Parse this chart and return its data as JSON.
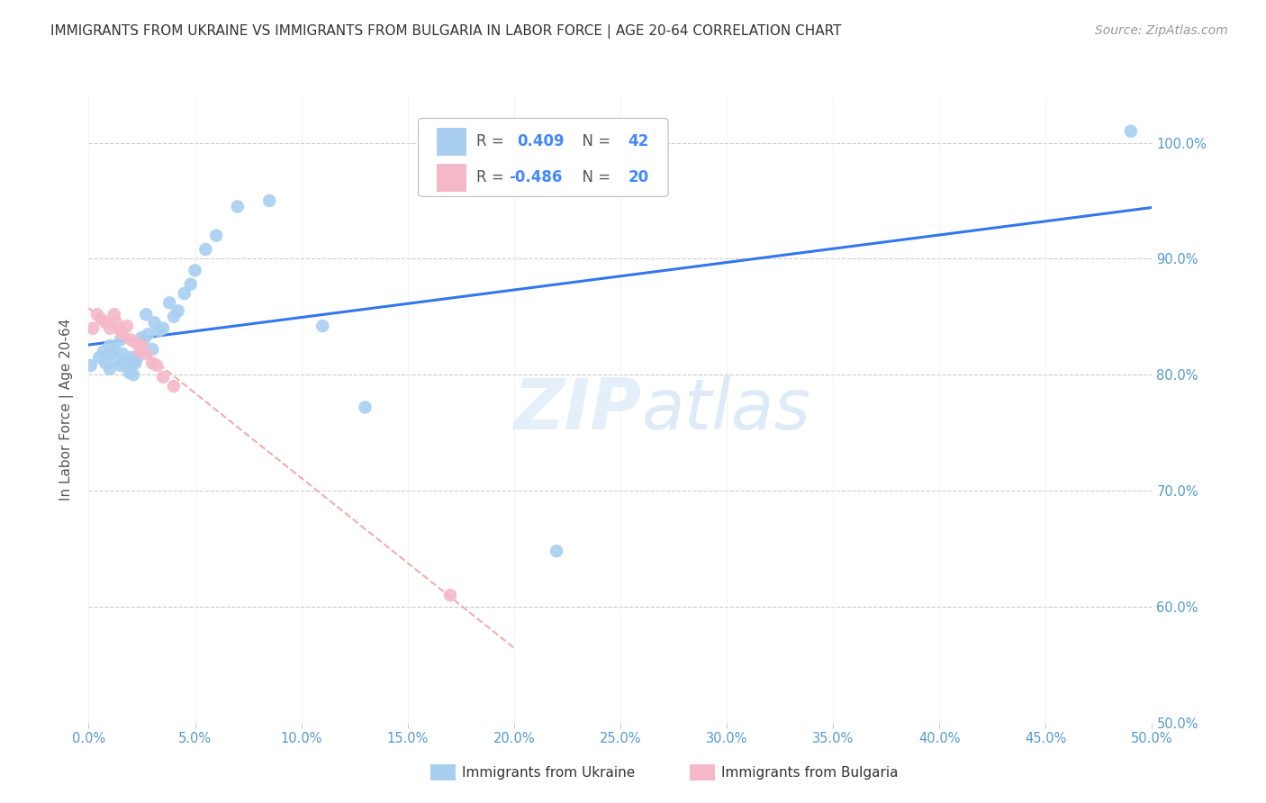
{
  "title": "IMMIGRANTS FROM UKRAINE VS IMMIGRANTS FROM BULGARIA IN LABOR FORCE | AGE 20-64 CORRELATION CHART",
  "source": "Source: ZipAtlas.com",
  "ylabel": "In Labor Force | Age 20-64",
  "xlim": [
    0.0,
    0.5
  ],
  "ylim": [
    0.5,
    1.04
  ],
  "xticks": [
    0.0,
    0.05,
    0.1,
    0.15,
    0.2,
    0.25,
    0.3,
    0.35,
    0.4,
    0.45,
    0.5
  ],
  "yticks_right": [
    0.5,
    0.6,
    0.7,
    0.8,
    0.9,
    1.0
  ],
  "ukraine_color": "#a8cff0",
  "bulgaria_color": "#f5b8c8",
  "ukraine_R": "0.409",
  "ukraine_N": "42",
  "bulgaria_R": "-0.486",
  "bulgaria_N": "20",
  "ukraine_line_color": "#3377ee",
  "bulgaria_line_color": "#ee9999",
  "watermark_zip": "ZIP",
  "watermark_atlas": "atlas",
  "ukraine_x": [
    0.001,
    0.005,
    0.007,
    0.008,
    0.01,
    0.01,
    0.01,
    0.012,
    0.013,
    0.015,
    0.015,
    0.016,
    0.017,
    0.018,
    0.019,
    0.02,
    0.02,
    0.021,
    0.022,
    0.023,
    0.025,
    0.026,
    0.027,
    0.028,
    0.03,
    0.031,
    0.033,
    0.035,
    0.038,
    0.04,
    0.042,
    0.045,
    0.048,
    0.05,
    0.055,
    0.06,
    0.07,
    0.085,
    0.11,
    0.13,
    0.22,
    0.49
  ],
  "ukraine_y": [
    0.808,
    0.815,
    0.82,
    0.81,
    0.825,
    0.818,
    0.805,
    0.822,
    0.812,
    0.83,
    0.808,
    0.818,
    0.813,
    0.808,
    0.802,
    0.815,
    0.808,
    0.8,
    0.81,
    0.815,
    0.832,
    0.83,
    0.852,
    0.835,
    0.822,
    0.845,
    0.838,
    0.84,
    0.862,
    0.85,
    0.855,
    0.87,
    0.878,
    0.89,
    0.908,
    0.92,
    0.945,
    0.95,
    0.842,
    0.772,
    0.648,
    1.01
  ],
  "bulgaria_x": [
    0.002,
    0.004,
    0.006,
    0.008,
    0.01,
    0.012,
    0.013,
    0.015,
    0.016,
    0.018,
    0.02,
    0.022,
    0.024,
    0.025,
    0.027,
    0.03,
    0.032,
    0.035,
    0.04,
    0.17
  ],
  "bulgaria_y": [
    0.84,
    0.852,
    0.848,
    0.845,
    0.84,
    0.852,
    0.845,
    0.838,
    0.835,
    0.842,
    0.83,
    0.828,
    0.82,
    0.825,
    0.818,
    0.81,
    0.808,
    0.798,
    0.79,
    0.61
  ]
}
